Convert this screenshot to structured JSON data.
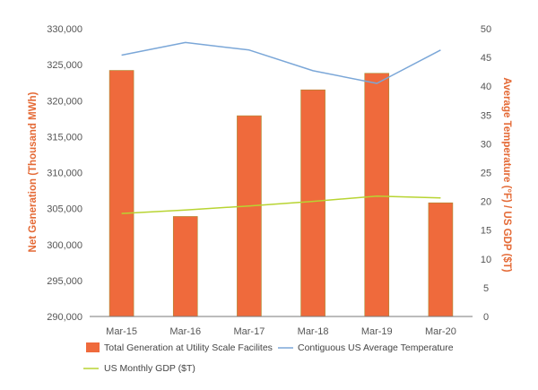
{
  "chart_data": {
    "type": "bar",
    "categories": [
      "Mar-15",
      "Mar-16",
      "Mar-17",
      "Mar-18",
      "Mar-19",
      "Mar-20"
    ],
    "series": [
      {
        "name": "Total Generation at Utility Scale Facilites",
        "type": "bar",
        "axis": "left",
        "color": "#EF6A3C",
        "values": [
          324200,
          303900,
          317900,
          321500,
          323800,
          305800
        ]
      },
      {
        "name": "Contiguous US Average Temperature",
        "type": "line",
        "axis": "right",
        "color": "#7BA7D8",
        "values": [
          45.4,
          47.6,
          46.3,
          42.7,
          40.5,
          46.3
        ]
      },
      {
        "name": "US Monthly GDP ($T)",
        "type": "line",
        "axis": "right",
        "color": "#B8D432",
        "values": [
          17.9,
          18.5,
          19.2,
          20.0,
          20.9,
          20.6
        ]
      }
    ],
    "ylabel": "Net Generation (Thousand MWh)",
    "ylabel_right": "Average Temperature (°F) / US GDP ($T)",
    "ylim": [
      290000,
      330000
    ],
    "ylim_right": [
      0,
      50
    ],
    "y_ticks": [
      "330,000",
      "325,000",
      "320,000",
      "315,000",
      "310,000",
      "305,000",
      "300,000",
      "295,000",
      "290,000"
    ],
    "y_ticks_right": [
      "50",
      "45",
      "40",
      "35",
      "30",
      "25",
      "20",
      "15",
      "10",
      "5",
      "0"
    ],
    "grid": false,
    "legend_position": "bottom"
  }
}
